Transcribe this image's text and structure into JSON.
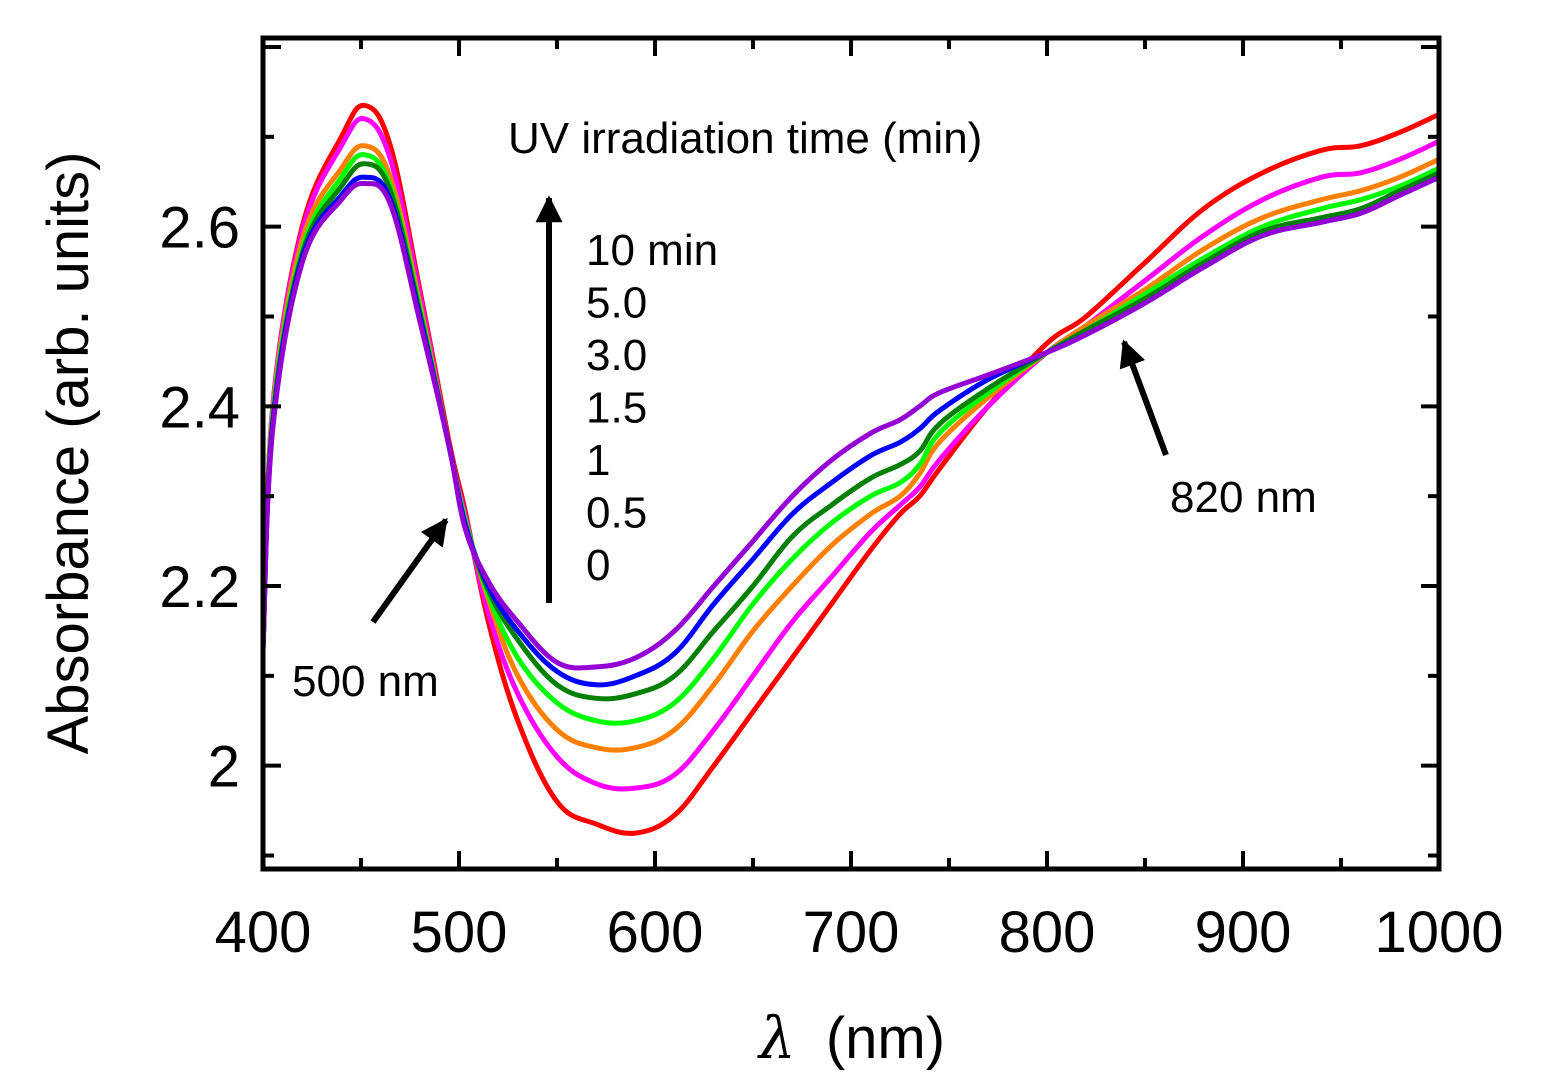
{
  "chart_data": {
    "type": "line",
    "title": "",
    "xlabel_symbol": "λ",
    "xlabel_unit": "(nm)",
    "ylabel": "Absorbance (arb. units)",
    "xlim": [
      400,
      1000
    ],
    "ylim": [
      1.885,
      2.81
    ],
    "x_ticks": [
      400,
      500,
      600,
      700,
      800,
      900,
      1000
    ],
    "x_tick_labels": [
      "400",
      "500",
      "600",
      "700",
      "800",
      "900",
      "1000"
    ],
    "y_ticks": [
      2.0,
      2.2,
      2.4,
      2.6
    ],
    "y_tick_labels": [
      "2",
      "2.2",
      "2.4",
      "2.6"
    ],
    "grid": false,
    "legend_title": "UV irradiation time (min)",
    "legend_entries": [
      "10 min",
      "5.0",
      "3.0",
      "1.5",
      "1",
      "0.5",
      "0"
    ],
    "annotations": [
      {
        "text": "500 nm",
        "x": 500
      },
      {
        "text": "820 nm",
        "x": 820
      }
    ],
    "x": [
      400,
      405,
      420,
      440,
      452,
      465,
      480,
      495,
      503,
      515,
      530,
      550,
      570,
      590,
      610,
      630,
      650,
      670,
      690,
      710,
      725,
      735,
      745,
      770,
      800,
      820,
      850,
      880,
      910,
      940,
      960,
      980,
      1000
    ],
    "series": [
      {
        "name": "0",
        "color": "#ff0000",
        "values": [
          2.13,
          2.4,
          2.6,
          2.7,
          2.735,
          2.69,
          2.53,
          2.36,
          2.285,
          2.16,
          2.05,
          1.96,
          1.935,
          1.925,
          1.945,
          2.0,
          2.06,
          2.12,
          2.18,
          2.24,
          2.28,
          2.3,
          2.33,
          2.4,
          2.47,
          2.5,
          2.56,
          2.62,
          2.66,
          2.685,
          2.69,
          2.705,
          2.725
        ]
      },
      {
        "name": "0.5",
        "color": "#ff00ff",
        "values": [
          2.13,
          2.4,
          2.595,
          2.69,
          2.72,
          2.675,
          2.525,
          2.355,
          2.28,
          2.17,
          2.08,
          2.01,
          1.98,
          1.975,
          1.99,
          2.04,
          2.1,
          2.16,
          2.21,
          2.26,
          2.29,
          2.31,
          2.34,
          2.4,
          2.46,
          2.49,
          2.54,
          2.59,
          2.63,
          2.655,
          2.66,
          2.675,
          2.695
        ]
      },
      {
        "name": "1",
        "color": "#ff8000",
        "values": [
          2.13,
          2.395,
          2.585,
          2.665,
          2.69,
          2.655,
          2.515,
          2.355,
          2.275,
          2.185,
          2.1,
          2.04,
          2.02,
          2.02,
          2.04,
          2.09,
          2.15,
          2.2,
          2.245,
          2.28,
          2.3,
          2.325,
          2.36,
          2.41,
          2.46,
          2.49,
          2.53,
          2.575,
          2.61,
          2.63,
          2.64,
          2.655,
          2.675
        ]
      },
      {
        "name": "1.5",
        "color": "#00ff00",
        "values": [
          2.13,
          2.39,
          2.575,
          2.655,
          2.68,
          2.645,
          2.51,
          2.355,
          2.275,
          2.19,
          2.12,
          2.07,
          2.05,
          2.05,
          2.07,
          2.12,
          2.18,
          2.23,
          2.27,
          2.3,
          2.315,
          2.335,
          2.37,
          2.415,
          2.46,
          2.485,
          2.525,
          2.565,
          2.6,
          2.62,
          2.63,
          2.645,
          2.665
        ]
      },
      {
        "name": "3.0",
        "color": "#008000",
        "values": [
          2.13,
          2.385,
          2.57,
          2.645,
          2.67,
          2.64,
          2.505,
          2.355,
          2.27,
          2.195,
          2.14,
          2.09,
          2.075,
          2.08,
          2.1,
          2.15,
          2.2,
          2.255,
          2.29,
          2.32,
          2.335,
          2.35,
          2.38,
          2.42,
          2.46,
          2.485,
          2.52,
          2.56,
          2.595,
          2.61,
          2.62,
          2.64,
          2.66
        ]
      },
      {
        "name": "5.0",
        "color": "#0000ff",
        "values": [
          2.13,
          2.38,
          2.565,
          2.635,
          2.655,
          2.63,
          2.5,
          2.355,
          2.27,
          2.2,
          2.15,
          2.105,
          2.09,
          2.1,
          2.125,
          2.18,
          2.23,
          2.28,
          2.315,
          2.345,
          2.36,
          2.375,
          2.395,
          2.43,
          2.46,
          2.48,
          2.515,
          2.555,
          2.59,
          2.605,
          2.615,
          2.635,
          2.655
        ]
      },
      {
        "name": "10 min",
        "color": "#9400d3",
        "values": [
          2.13,
          2.375,
          2.56,
          2.63,
          2.648,
          2.625,
          2.495,
          2.355,
          2.265,
          2.205,
          2.16,
          2.115,
          2.11,
          2.12,
          2.15,
          2.2,
          2.25,
          2.3,
          2.34,
          2.37,
          2.385,
          2.4,
          2.415,
          2.435,
          2.46,
          2.48,
          2.515,
          2.555,
          2.59,
          2.605,
          2.615,
          2.635,
          2.655
        ]
      }
    ]
  }
}
